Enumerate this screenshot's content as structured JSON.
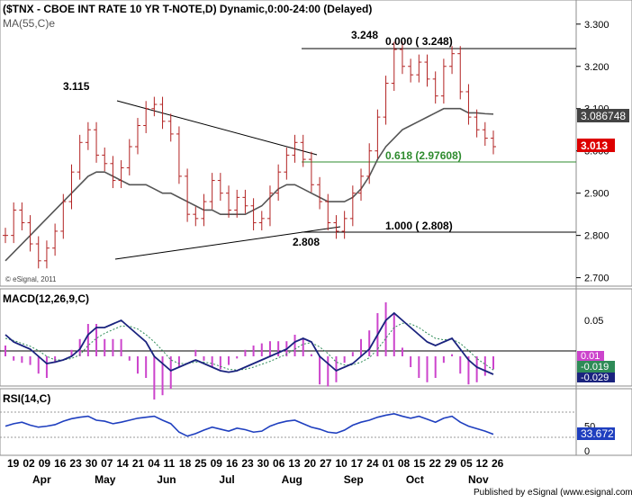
{
  "header": {
    "title": "($TNX - CBOE INT RATE 10 YR T-NOTE,D) Dynamic,0:00-24:00 (Delayed)",
    "ma_label": "MA(55,C)e",
    "watermark": "© eSignal, 2011"
  },
  "footer": {
    "credit": "Published by eSignal (www.esignal.com)"
  },
  "colors": {
    "price_bars": "#b22222",
    "ma_line": "#555555",
    "macd_line": "#1a237e",
    "signal_line": "#2e8b57",
    "histogram": "#cc44cc",
    "rsi_line": "#1f3fbf",
    "fib_green": "#2e8b2e",
    "last_price_bg": "#dd0000",
    "ma_value_bg": "#444444",
    "macd_value_bg": "#1a237e",
    "signal_value_bg": "#2e8b57",
    "hist_value_bg": "#cc44cc",
    "rsi_value_bg": "#1f3fbf"
  },
  "chart_data": [
    {
      "type": "candlestick",
      "panel": "price",
      "ylim": [
        2.68,
        3.34
      ],
      "yticks": [
        "3.300",
        "3.200",
        "3.100",
        "3.000",
        "2.900",
        "2.800",
        "2.700"
      ],
      "x_tick_labels": [
        "19",
        "02",
        "09",
        "16",
        "23",
        "30",
        "07",
        "14",
        "21",
        "04",
        "11",
        "18",
        "25",
        "09",
        "16",
        "23",
        "30",
        "06",
        "13",
        "20",
        "27",
        "10",
        "17",
        "24",
        "01",
        "08",
        "15",
        "22",
        "29",
        "05",
        "12",
        "26"
      ],
      "x_month_labels": [
        "Apr",
        "May",
        "Jun",
        "Jul",
        "Aug",
        "Sep",
        "Oct",
        "Nov"
      ],
      "series": [
        {
          "name": "$TNX",
          "close": [
            2.8,
            2.86,
            2.83,
            2.78,
            2.74,
            2.77,
            2.81,
            2.88,
            2.95,
            3.02,
            3.05,
            2.99,
            2.97,
            2.93,
            2.96,
            3.01,
            3.06,
            3.1,
            3.11,
            3.07,
            3.04,
            2.94,
            2.85,
            2.84,
            2.88,
            2.93,
            2.9,
            2.86,
            2.89,
            2.87,
            2.83,
            2.84,
            2.9,
            2.95,
            2.99,
            3.02,
            2.98,
            2.92,
            2.88,
            2.83,
            2.81,
            2.84,
            2.9,
            2.94,
            3.0,
            3.08,
            3.16,
            3.24,
            3.2,
            3.18,
            3.21,
            3.17,
            3.13,
            3.2,
            3.23,
            3.14,
            3.08,
            3.05,
            3.03,
            3.01
          ]
        },
        {
          "name": "MA(55,C)",
          "values": [
            2.74,
            2.76,
            2.78,
            2.8,
            2.82,
            2.84,
            2.86,
            2.88,
            2.9,
            2.92,
            2.94,
            2.95,
            2.95,
            2.94,
            2.93,
            2.92,
            2.92,
            2.92,
            2.91,
            2.9,
            2.9,
            2.89,
            2.88,
            2.87,
            2.86,
            2.86,
            2.85,
            2.85,
            2.85,
            2.85,
            2.86,
            2.87,
            2.89,
            2.91,
            2.92,
            2.92,
            2.91,
            2.9,
            2.89,
            2.88,
            2.88,
            2.88,
            2.89,
            2.91,
            2.94,
            2.98,
            3.01,
            3.03,
            3.05,
            3.06,
            3.07,
            3.08,
            3.09,
            3.1,
            3.1,
            3.1,
            3.09,
            3.09,
            3.088,
            3.087
          ]
        }
      ],
      "last_price": "3.013",
      "ma_value": "3.086748",
      "annotations": {
        "high_left": "3.115",
        "high_right": "3.248",
        "low": "2.808",
        "fib_0": "0.000 ( 3.248)",
        "fib_618": "0.618 (2.97608)",
        "fib_100": "1.000 ( 2.808)"
      },
      "fib_levels": [
        3.248,
        2.97608,
        2.808
      ],
      "trendlines": [
        {
          "name": "upper",
          "from": [
            0.25,
            3.1
          ],
          "to": [
            0.68,
            2.99
          ]
        },
        {
          "name": "lower",
          "from": [
            0.25,
            2.74
          ],
          "to": [
            0.74,
            2.82
          ]
        }
      ]
    },
    {
      "type": "line",
      "panel": "macd",
      "title": "MACD(12,26,9,C)",
      "ylim": [
        -0.04,
        0.075
      ],
      "yticks": [
        "0.05",
        "0",
        "-0.025"
      ],
      "series": [
        {
          "name": "MACD",
          "values": [
            0.03,
            0.02,
            0.015,
            0.01,
            0.0,
            -0.01,
            -0.008,
            -0.005,
            0.0,
            0.01,
            0.03,
            0.04,
            0.04,
            0.045,
            0.05,
            0.04,
            0.03,
            0.02,
            0.0,
            -0.01,
            -0.02,
            -0.015,
            -0.01,
            -0.005,
            -0.01,
            -0.015,
            -0.02,
            -0.022,
            -0.02,
            -0.015,
            -0.01,
            -0.005,
            0.0,
            0.005,
            0.01,
            0.02,
            0.025,
            0.02,
            0.0,
            -0.01,
            -0.02,
            -0.015,
            -0.01,
            0.0,
            0.01,
            0.03,
            0.05,
            0.06,
            0.05,
            0.04,
            0.03,
            0.02,
            0.015,
            0.02,
            0.025,
            0.01,
            -0.005,
            -0.015,
            -0.02,
            -0.025
          ]
        },
        {
          "name": "Signal",
          "values": [
            0.025,
            0.022,
            0.018,
            0.014,
            0.008,
            0.0,
            -0.005,
            -0.005,
            -0.003,
            0.002,
            0.015,
            0.025,
            0.032,
            0.037,
            0.042,
            0.042,
            0.038,
            0.03,
            0.02,
            0.008,
            -0.005,
            -0.01,
            -0.01,
            -0.008,
            -0.008,
            -0.01,
            -0.014,
            -0.018,
            -0.019,
            -0.018,
            -0.015,
            -0.011,
            -0.007,
            -0.002,
            0.003,
            0.01,
            0.017,
            0.019,
            0.013,
            0.004,
            -0.008,
            -0.012,
            -0.012,
            -0.008,
            -0.002,
            0.01,
            0.025,
            0.04,
            0.046,
            0.045,
            0.04,
            0.032,
            0.025,
            0.023,
            0.024,
            0.018,
            0.008,
            -0.003,
            -0.011,
            -0.019
          ]
        }
      ],
      "values_shown": [
        "0.01",
        "-0.019",
        "-0.029"
      ]
    },
    {
      "type": "line",
      "panel": "rsi",
      "title": "RSI(14,C)",
      "ylim": [
        -5,
        100
      ],
      "yticks": [
        "50",
        "0"
      ],
      "series": [
        {
          "name": "RSI",
          "values": [
            50,
            55,
            58,
            52,
            48,
            50,
            53,
            60,
            65,
            68,
            70,
            62,
            60,
            55,
            58,
            62,
            66,
            68,
            70,
            62,
            55,
            38,
            30,
            35,
            42,
            48,
            44,
            40,
            46,
            43,
            38,
            40,
            50,
            56,
            60,
            62,
            55,
            48,
            44,
            38,
            36,
            42,
            52,
            58,
            62,
            68,
            72,
            75,
            70,
            66,
            70,
            64,
            58,
            66,
            70,
            58,
            50,
            45,
            40,
            33.672
          ]
        }
      ],
      "value_shown": "33.672"
    }
  ]
}
